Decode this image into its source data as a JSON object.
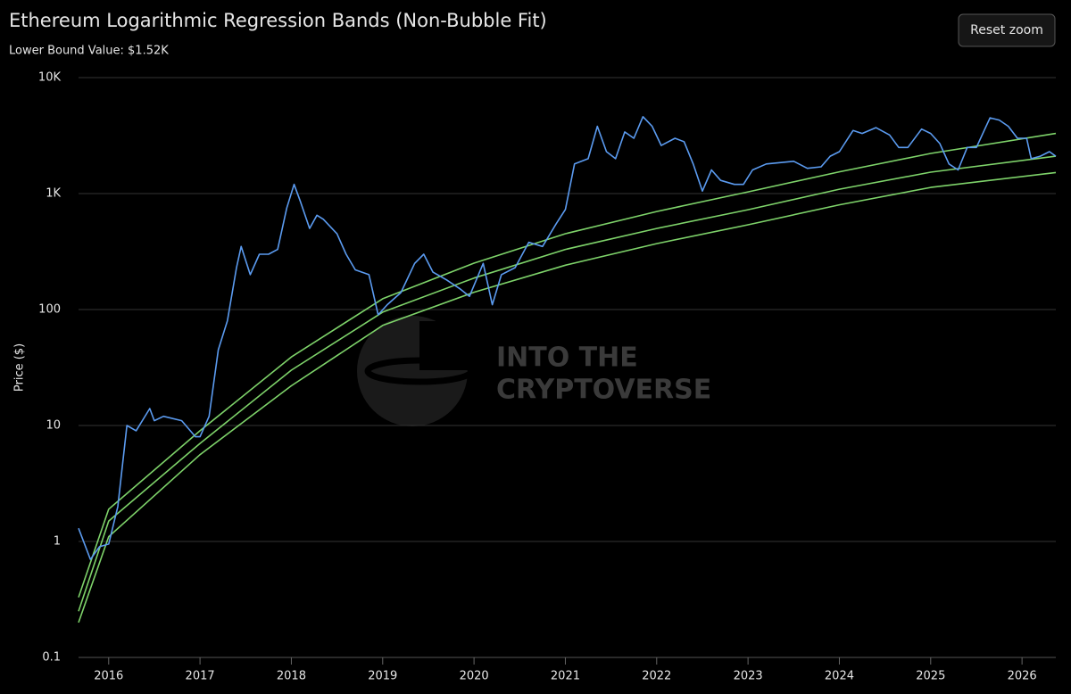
{
  "chart_data": {
    "type": "line",
    "title": "Ethereum Logarithmic Regression Bands (Non-Bubble Fit)",
    "subtitle": "Lower Bound Value: $1.52K",
    "y_label": "Price ($)",
    "button": "Reset zoom",
    "watermark": [
      "INTO THE",
      "CRYPTOVERSE"
    ],
    "log_y": true,
    "grid": true,
    "xlim": [
      2015.67,
      2026.37
    ],
    "xticks": [
      2016,
      2017,
      2018,
      2019,
      2020,
      2021,
      2022,
      2023,
      2024,
      2025,
      2026
    ],
    "ylim": [
      0.1,
      10000
    ],
    "yticks": [
      0.1,
      1,
      10,
      100,
      {
        "value": 1000,
        "label": "1K"
      },
      {
        "value": 10000,
        "label": "10K"
      }
    ],
    "series": [
      {
        "color": "#7ed36a",
        "x": [
          2015.67,
          2016,
          2017,
          2018,
          2019,
          2020,
          2021,
          2022,
          2023,
          2024,
          2025,
          2026.37
        ],
        "values": [
          0.33,
          1.9,
          9,
          39,
          124,
          251,
          451,
          700,
          1035,
          1540,
          2220,
          3300
        ]
      },
      {
        "color": "#7ed36a",
        "x": [
          2015.67,
          2016,
          2017,
          2018,
          2019,
          2020,
          2021,
          2022,
          2023,
          2024,
          2025,
          2026.37
        ],
        "values": [
          0.25,
          1.5,
          7,
          30,
          95,
          187,
          330,
          500,
          726,
          1090,
          1530,
          2100
        ]
      },
      {
        "color": "#7ed36a",
        "x": [
          2015.67,
          2016,
          2017,
          2018,
          2019,
          2020,
          2021,
          2022,
          2023,
          2024,
          2025,
          2026.37
        ],
        "values": [
          0.2,
          1.1,
          5.6,
          22,
          73,
          141,
          241,
          370,
          538,
          800,
          1130,
          1520
        ]
      },
      {
        "color": "#5b9bf0",
        "x": [
          2015.67,
          2015.8,
          2015.9,
          2016.0,
          2016.1,
          2016.2,
          2016.3,
          2016.45,
          2016.5,
          2016.6,
          2016.8,
          2016.95,
          2017.0,
          2017.1,
          2017.2,
          2017.3,
          2017.4,
          2017.45,
          2017.55,
          2017.65,
          2017.75,
          2017.85,
          2017.95,
          2018.03,
          2018.1,
          2018.2,
          2018.28,
          2018.35,
          2018.5,
          2018.6,
          2018.7,
          2018.85,
          2018.95,
          2019.05,
          2019.2,
          2019.35,
          2019.45,
          2019.55,
          2019.7,
          2019.85,
          2019.95,
          2020.1,
          2020.2,
          2020.3,
          2020.45,
          2020.6,
          2020.75,
          2020.9,
          2021.0,
          2021.1,
          2021.25,
          2021.35,
          2021.45,
          2021.55,
          2021.65,
          2021.75,
          2021.85,
          2021.95,
          2022.05,
          2022.2,
          2022.3,
          2022.4,
          2022.5,
          2022.6,
          2022.7,
          2022.85,
          2022.95,
          2023.05,
          2023.2,
          2023.35,
          2023.5,
          2023.65,
          2023.8,
          2023.9,
          2024.0,
          2024.15,
          2024.25,
          2024.4,
          2024.55,
          2024.65,
          2024.75,
          2024.9,
          2025.0,
          2025.1,
          2025.2,
          2025.3,
          2025.4,
          2025.5,
          2025.6,
          2025.65,
          2025.75,
          2025.85,
          2025.95,
          2026.05,
          2026.1,
          2026.2,
          2026.3,
          2026.37
        ],
        "values": [
          1.3,
          0.7,
          0.9,
          0.95,
          2,
          10,
          9,
          14,
          11,
          12,
          11,
          8,
          8,
          12,
          45,
          80,
          230,
          350,
          200,
          300,
          300,
          330,
          750,
          1200,
          850,
          500,
          650,
          600,
          450,
          300,
          220,
          200,
          90,
          110,
          140,
          250,
          300,
          210,
          180,
          150,
          130,
          250,
          110,
          200,
          230,
          380,
          350,
          550,
          730,
          1800,
          2000,
          3800,
          2300,
          2000,
          3400,
          3000,
          4600,
          3800,
          2600,
          3000,
          2800,
          1800,
          1050,
          1600,
          1300,
          1200,
          1200,
          1600,
          1800,
          1850,
          1900,
          1650,
          1700,
          2100,
          2300,
          3500,
          3300,
          3700,
          3200,
          2500,
          2500,
          3600,
          3300,
          2700,
          1800,
          1600,
          2500,
          2500,
          3700,
          4500,
          4300,
          3800,
          3000,
          3000,
          2000,
          2100,
          2300,
          2100
        ]
      }
    ]
  }
}
